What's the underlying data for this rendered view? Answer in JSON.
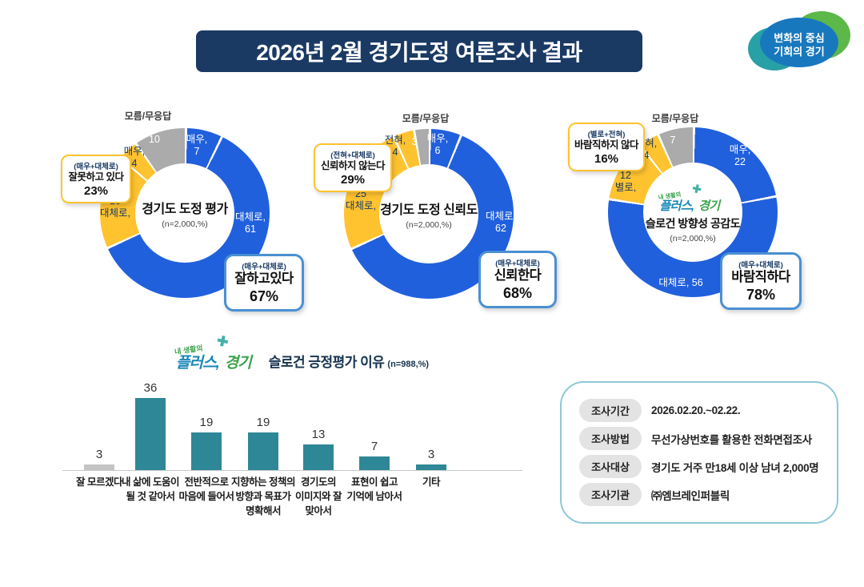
{
  "header": {
    "title": "2026년 2월 경기도정 여론조사 결과",
    "logo_line1": "변화의 중심",
    "logo_line2": "기회의 경기"
  },
  "plus_logo": {
    "pre": "내 생활의",
    "main": "플러스,",
    "region": "경기"
  },
  "chart_data": [
    {
      "type": "pie",
      "title": "경기도 도정 평가",
      "subtitle": "(n=2,000,%)",
      "segments": [
        {
          "label": "매우,",
          "value": 7,
          "color": "#2160dd"
        },
        {
          "label": "대체로,",
          "value": 61,
          "color": "#2160dd"
        },
        {
          "label": "대체로,",
          "value": 18,
          "color": "#ffc330"
        },
        {
          "label": "매우,",
          "value": 4,
          "color": "#ffc330"
        },
        {
          "label": "모름/무응답",
          "value": 10,
          "color": "#ababab"
        }
      ],
      "callout_negative": {
        "group": "(매우+대체로)",
        "label": "잘못하고 있다",
        "value": "23%"
      },
      "callout_positive": {
        "group": "(매우+대체로)",
        "label": "잘하고있다",
        "value": "67%"
      }
    },
    {
      "type": "pie",
      "title": "경기도 도정 신뢰도",
      "subtitle": "(n=2,000,%)",
      "segments": [
        {
          "label": "매우,",
          "value": 6,
          "color": "#2160dd"
        },
        {
          "label": "대체로,",
          "value": 62,
          "color": "#2160dd"
        },
        {
          "label": "대체로,",
          "value": 25,
          "color": "#ffc330"
        },
        {
          "label": "전혀,",
          "value": 4,
          "color": "#ffc330"
        },
        {
          "label": "모름/무응답",
          "value": 3,
          "color": "#ababab"
        }
      ],
      "callout_negative": {
        "group": "(전혀+대체로)",
        "label": "신뢰하지 않는다",
        "value": "29%"
      },
      "callout_positive": {
        "group": "(매우+대체로)",
        "label": "신뢰한다",
        "value": "68%"
      }
    },
    {
      "type": "pie",
      "title": "슬로건 방향성 공감도",
      "subtitle": "(n=2,000,%)",
      "segments": [
        {
          "label": "매우,",
          "value": 22,
          "color": "#2160dd"
        },
        {
          "label": "대체로,",
          "value": 56,
          "color": "#2160dd"
        },
        {
          "label": "별로,",
          "value": 12,
          "color": "#ffc330"
        },
        {
          "label": "전혀,",
          "value": 4,
          "color": "#ffc330"
        },
        {
          "label": "모름/무응답",
          "value": 7,
          "color": "#ababab"
        }
      ],
      "callout_negative": {
        "group": "(별로+전혀)",
        "label": "바람직하지 않다",
        "value": "16%"
      },
      "callout_positive": {
        "group": "(매우+대체로)",
        "label": "바람직하다",
        "value": "78%"
      }
    },
    {
      "type": "bar",
      "title": "슬로건 긍정평가 이유",
      "subtitle": "(n=988,%)",
      "categories": [
        "내 삶에 도움이\n될 것 같아서",
        "전반적으로\n마음에 들어서",
        "지향하는 정책의\n방향과 목표가\n명확해서",
        "경기도의\n이미지와 잘\n맞아서",
        "표현이 쉽고\n기억에 남아서",
        "기타",
        "잘 모르겠다"
      ],
      "values": [
        36,
        19,
        19,
        13,
        7,
        3,
        3
      ],
      "colors": [
        "#2e8796",
        "#2e8796",
        "#2e8796",
        "#2e8796",
        "#2e8796",
        "#2e8796",
        "#c4c4c4"
      ],
      "ylim": [
        0,
        40
      ],
      "grid": false
    }
  ],
  "survey_info": {
    "rows": [
      {
        "label": "조사기간",
        "value": "2026.02.20.~02.22."
      },
      {
        "label": "조사방법",
        "value": "무선가상번호를 활용한 전화면접조사"
      },
      {
        "label": "조사대상",
        "value": "경기도 거주 만18세 이상 남녀 2,000명"
      },
      {
        "label": "조사기관",
        "value": "㈜엠브레인퍼블릭"
      }
    ]
  }
}
